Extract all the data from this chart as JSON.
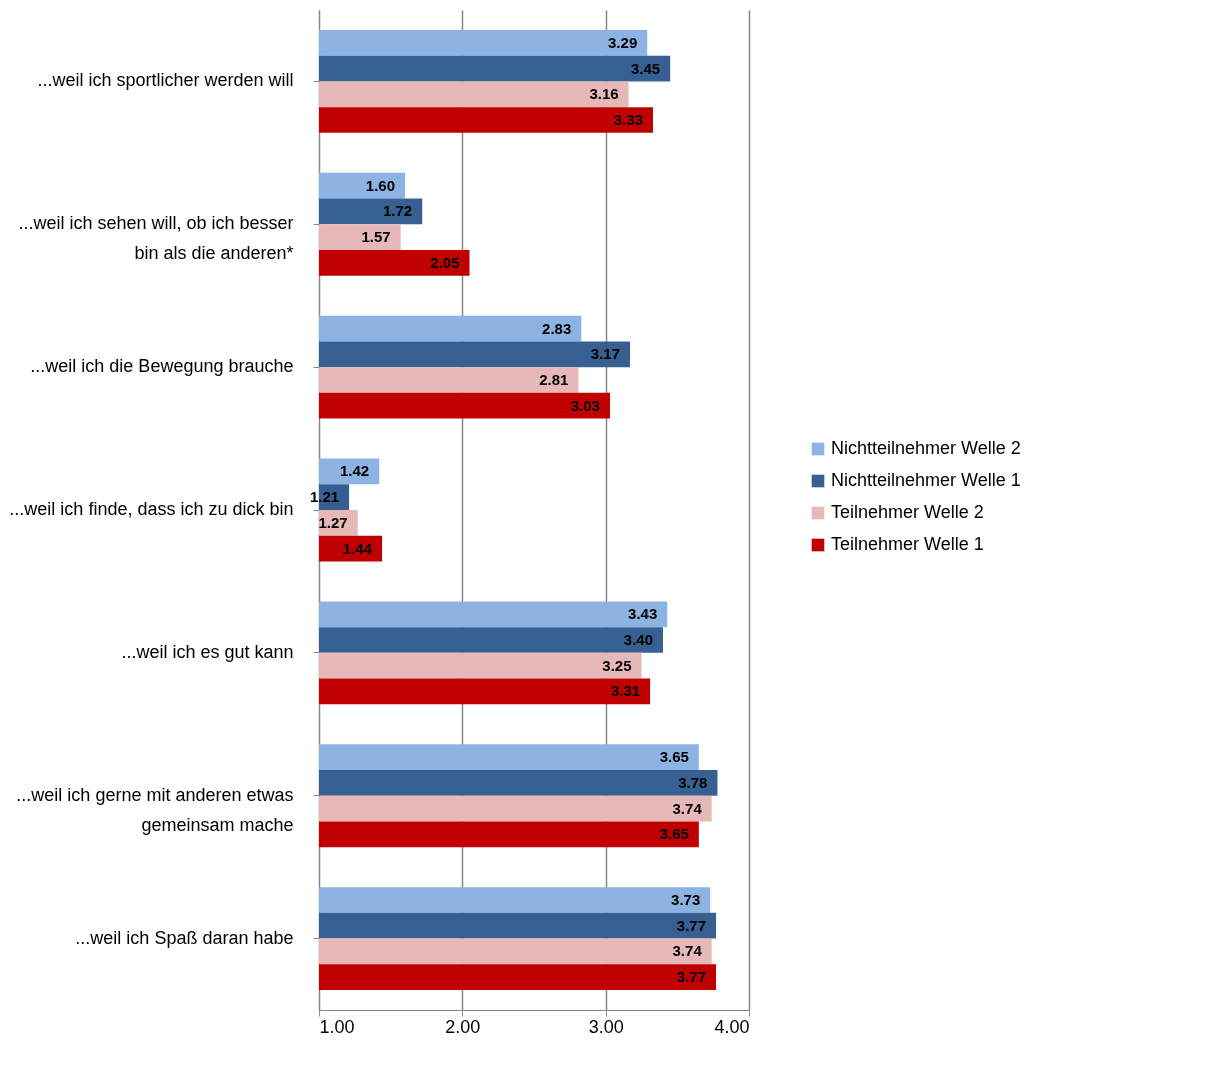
{
  "chart_data": {
    "type": "bar",
    "orientation": "horizontal",
    "categories": [
      "...weil ich sportlicher werden will",
      "...weil ich sehen will, ob ich besser bin als die anderen*",
      "...weil ich die Bewegung brauche",
      "...weil ich finde, dass ich zu dick bin",
      "...weil ich es gut kann",
      "...weil ich gerne mit anderen etwas gemeinsam mache",
      "...weil ich Spaß daran habe"
    ],
    "series": [
      {
        "name": "Nichtteilnehmer Welle 2",
        "color": "#8db3e2",
        "values": [
          3.29,
          1.6,
          2.83,
          1.42,
          3.43,
          3.65,
          3.73
        ],
        "value_labels": [
          "3.29",
          "1.60",
          "2.83",
          "1.42",
          "3.43",
          "3.65",
          "3.73"
        ]
      },
      {
        "name": "Nichtteilnehmer Welle 1",
        "color": "#376092",
        "values": [
          3.45,
          1.72,
          3.17,
          1.21,
          3.4,
          3.78,
          3.77
        ],
        "value_labels": [
          "3.45",
          "1.72",
          "3.17",
          "1.21",
          "3.40",
          "3.78",
          "3.77"
        ]
      },
      {
        "name": "Teilnehmer Welle 2",
        "color": "#e6b9b8",
        "values": [
          3.16,
          1.57,
          2.81,
          1.27,
          3.25,
          3.74,
          3.74
        ],
        "value_labels": [
          "3.16",
          "1.57",
          "2.81",
          "1.27",
          "3.25",
          "3.74",
          "3.74"
        ]
      },
      {
        "name": "Teilnehmer Welle 1",
        "color": "#c00000",
        "values": [
          3.33,
          2.05,
          3.03,
          1.44,
          3.31,
          3.65,
          3.77
        ],
        "value_labels": [
          "3.33",
          "2.05",
          "3.03",
          "1.44",
          "3.31",
          "3.65",
          "3.77"
        ]
      }
    ],
    "xlim": [
      1,
      4
    ],
    "xticks": [
      {
        "value": 1,
        "label": "1.00"
      },
      {
        "value": 2,
        "label": "2.00"
      },
      {
        "value": 3,
        "label": "3.00"
      },
      {
        "value": 4,
        "label": "4.00"
      }
    ],
    "grid": "x",
    "legend": "right"
  }
}
